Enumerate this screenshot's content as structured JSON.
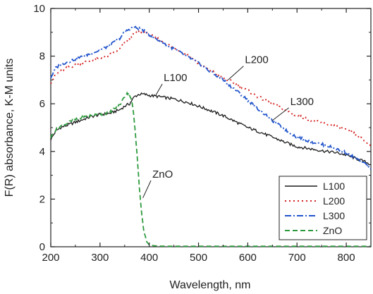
{
  "chart_data": {
    "type": "line",
    "xlabel": "Wavelength, nm",
    "ylabel": "F(R) absorbance, K-M units",
    "xlim": [
      200,
      850
    ],
    "ylim": [
      0,
      10
    ],
    "x_ticks": [
      "200",
      "300",
      "400",
      "500",
      "600",
      "700",
      "800"
    ],
    "y_ticks": [
      "0",
      "2",
      "4",
      "6",
      "8",
      "10"
    ],
    "grid": false,
    "legend_position": "lower-right",
    "series": [
      {
        "name": "L100",
        "color": "#1a1a1a",
        "dash": "solid",
        "x": [
          200,
          210,
          220,
          240,
          260,
          280,
          300,
          320,
          340,
          350,
          360,
          370,
          380,
          390,
          400,
          420,
          450,
          480,
          500,
          520,
          550,
          580,
          600,
          620,
          650,
          680,
          700,
          730,
          760,
          780,
          800,
          820,
          840,
          850
        ],
        "y": [
          4.5,
          4.85,
          5.0,
          5.15,
          5.3,
          5.45,
          5.55,
          5.6,
          5.75,
          5.9,
          6.0,
          6.3,
          6.4,
          6.4,
          6.35,
          6.3,
          6.2,
          6.05,
          5.9,
          5.75,
          5.5,
          5.2,
          5.0,
          4.85,
          4.6,
          4.35,
          4.2,
          4.1,
          4.0,
          3.95,
          3.85,
          3.7,
          3.55,
          3.45
        ]
      },
      {
        "name": "L200",
        "color": "#d42020",
        "dash": "dot",
        "x": [
          200,
          210,
          220,
          240,
          260,
          280,
          300,
          320,
          340,
          350,
          360,
          370,
          380,
          390,
          400,
          420,
          450,
          480,
          500,
          520,
          550,
          580,
          600,
          620,
          650,
          680,
          700,
          730,
          760,
          780,
          800,
          820,
          840,
          850
        ],
        "y": [
          6.9,
          7.2,
          7.4,
          7.55,
          7.7,
          7.8,
          7.9,
          8.05,
          8.3,
          8.55,
          8.75,
          8.95,
          9.05,
          9.0,
          8.9,
          8.7,
          8.35,
          8.0,
          7.7,
          7.45,
          7.1,
          6.8,
          6.55,
          6.3,
          6.0,
          5.7,
          5.5,
          5.3,
          5.15,
          5.05,
          4.9,
          4.7,
          4.4,
          4.2
        ]
      },
      {
        "name": "L300",
        "color": "#2255cc",
        "dash": "dashdot",
        "x": [
          200,
          210,
          220,
          240,
          260,
          280,
          300,
          320,
          340,
          350,
          360,
          370,
          380,
          390,
          400,
          420,
          450,
          480,
          500,
          520,
          550,
          580,
          600,
          620,
          650,
          680,
          700,
          730,
          760,
          780,
          800,
          820,
          840,
          850
        ],
        "y": [
          7.1,
          7.5,
          7.65,
          7.8,
          7.95,
          8.1,
          8.25,
          8.45,
          8.75,
          9.0,
          9.15,
          9.2,
          9.15,
          9.05,
          8.9,
          8.65,
          8.3,
          7.95,
          7.7,
          7.4,
          7.0,
          6.5,
          6.15,
          5.8,
          5.3,
          4.85,
          4.6,
          4.4,
          4.25,
          4.1,
          3.95,
          3.7,
          3.45,
          3.25
        ]
      },
      {
        "name": "ZnO",
        "color": "#2e9a3e",
        "dash": "dash",
        "x": [
          200,
          210,
          220,
          240,
          260,
          280,
          300,
          320,
          340,
          350,
          355,
          360,
          365,
          370,
          375,
          380,
          385,
          390,
          395,
          400,
          410,
          420,
          440,
          470,
          500,
          550,
          600,
          650,
          700,
          750,
          800,
          850
        ],
        "y": [
          4.6,
          4.9,
          5.05,
          5.25,
          5.4,
          5.5,
          5.55,
          5.65,
          5.95,
          6.3,
          6.45,
          6.4,
          6.1,
          5.2,
          3.9,
          2.5,
          1.3,
          0.55,
          0.2,
          0.08,
          0.04,
          0.03,
          0.02,
          0.02,
          0.02,
          0.02,
          0.02,
          0.02,
          0.02,
          0.02,
          0.02,
          0.02
        ]
      }
    ],
    "annotations": [
      {
        "text": "L100",
        "series": "L100",
        "point_x": 413,
        "point_y": 6.35,
        "label_x": 435,
        "label_y": 6.95
      },
      {
        "text": "L200",
        "series": "L200",
        "point_x": 560,
        "point_y": 7.0,
        "label_x": 600,
        "label_y": 7.7
      },
      {
        "text": "L300",
        "series": "L300",
        "point_x": 650,
        "point_y": 5.3,
        "label_x": 692,
        "label_y": 5.95
      },
      {
        "text": "ZnO",
        "series": "ZnO",
        "point_x": 387,
        "point_y": 2.05,
        "label_x": 412,
        "label_y": 2.9
      }
    ]
  }
}
